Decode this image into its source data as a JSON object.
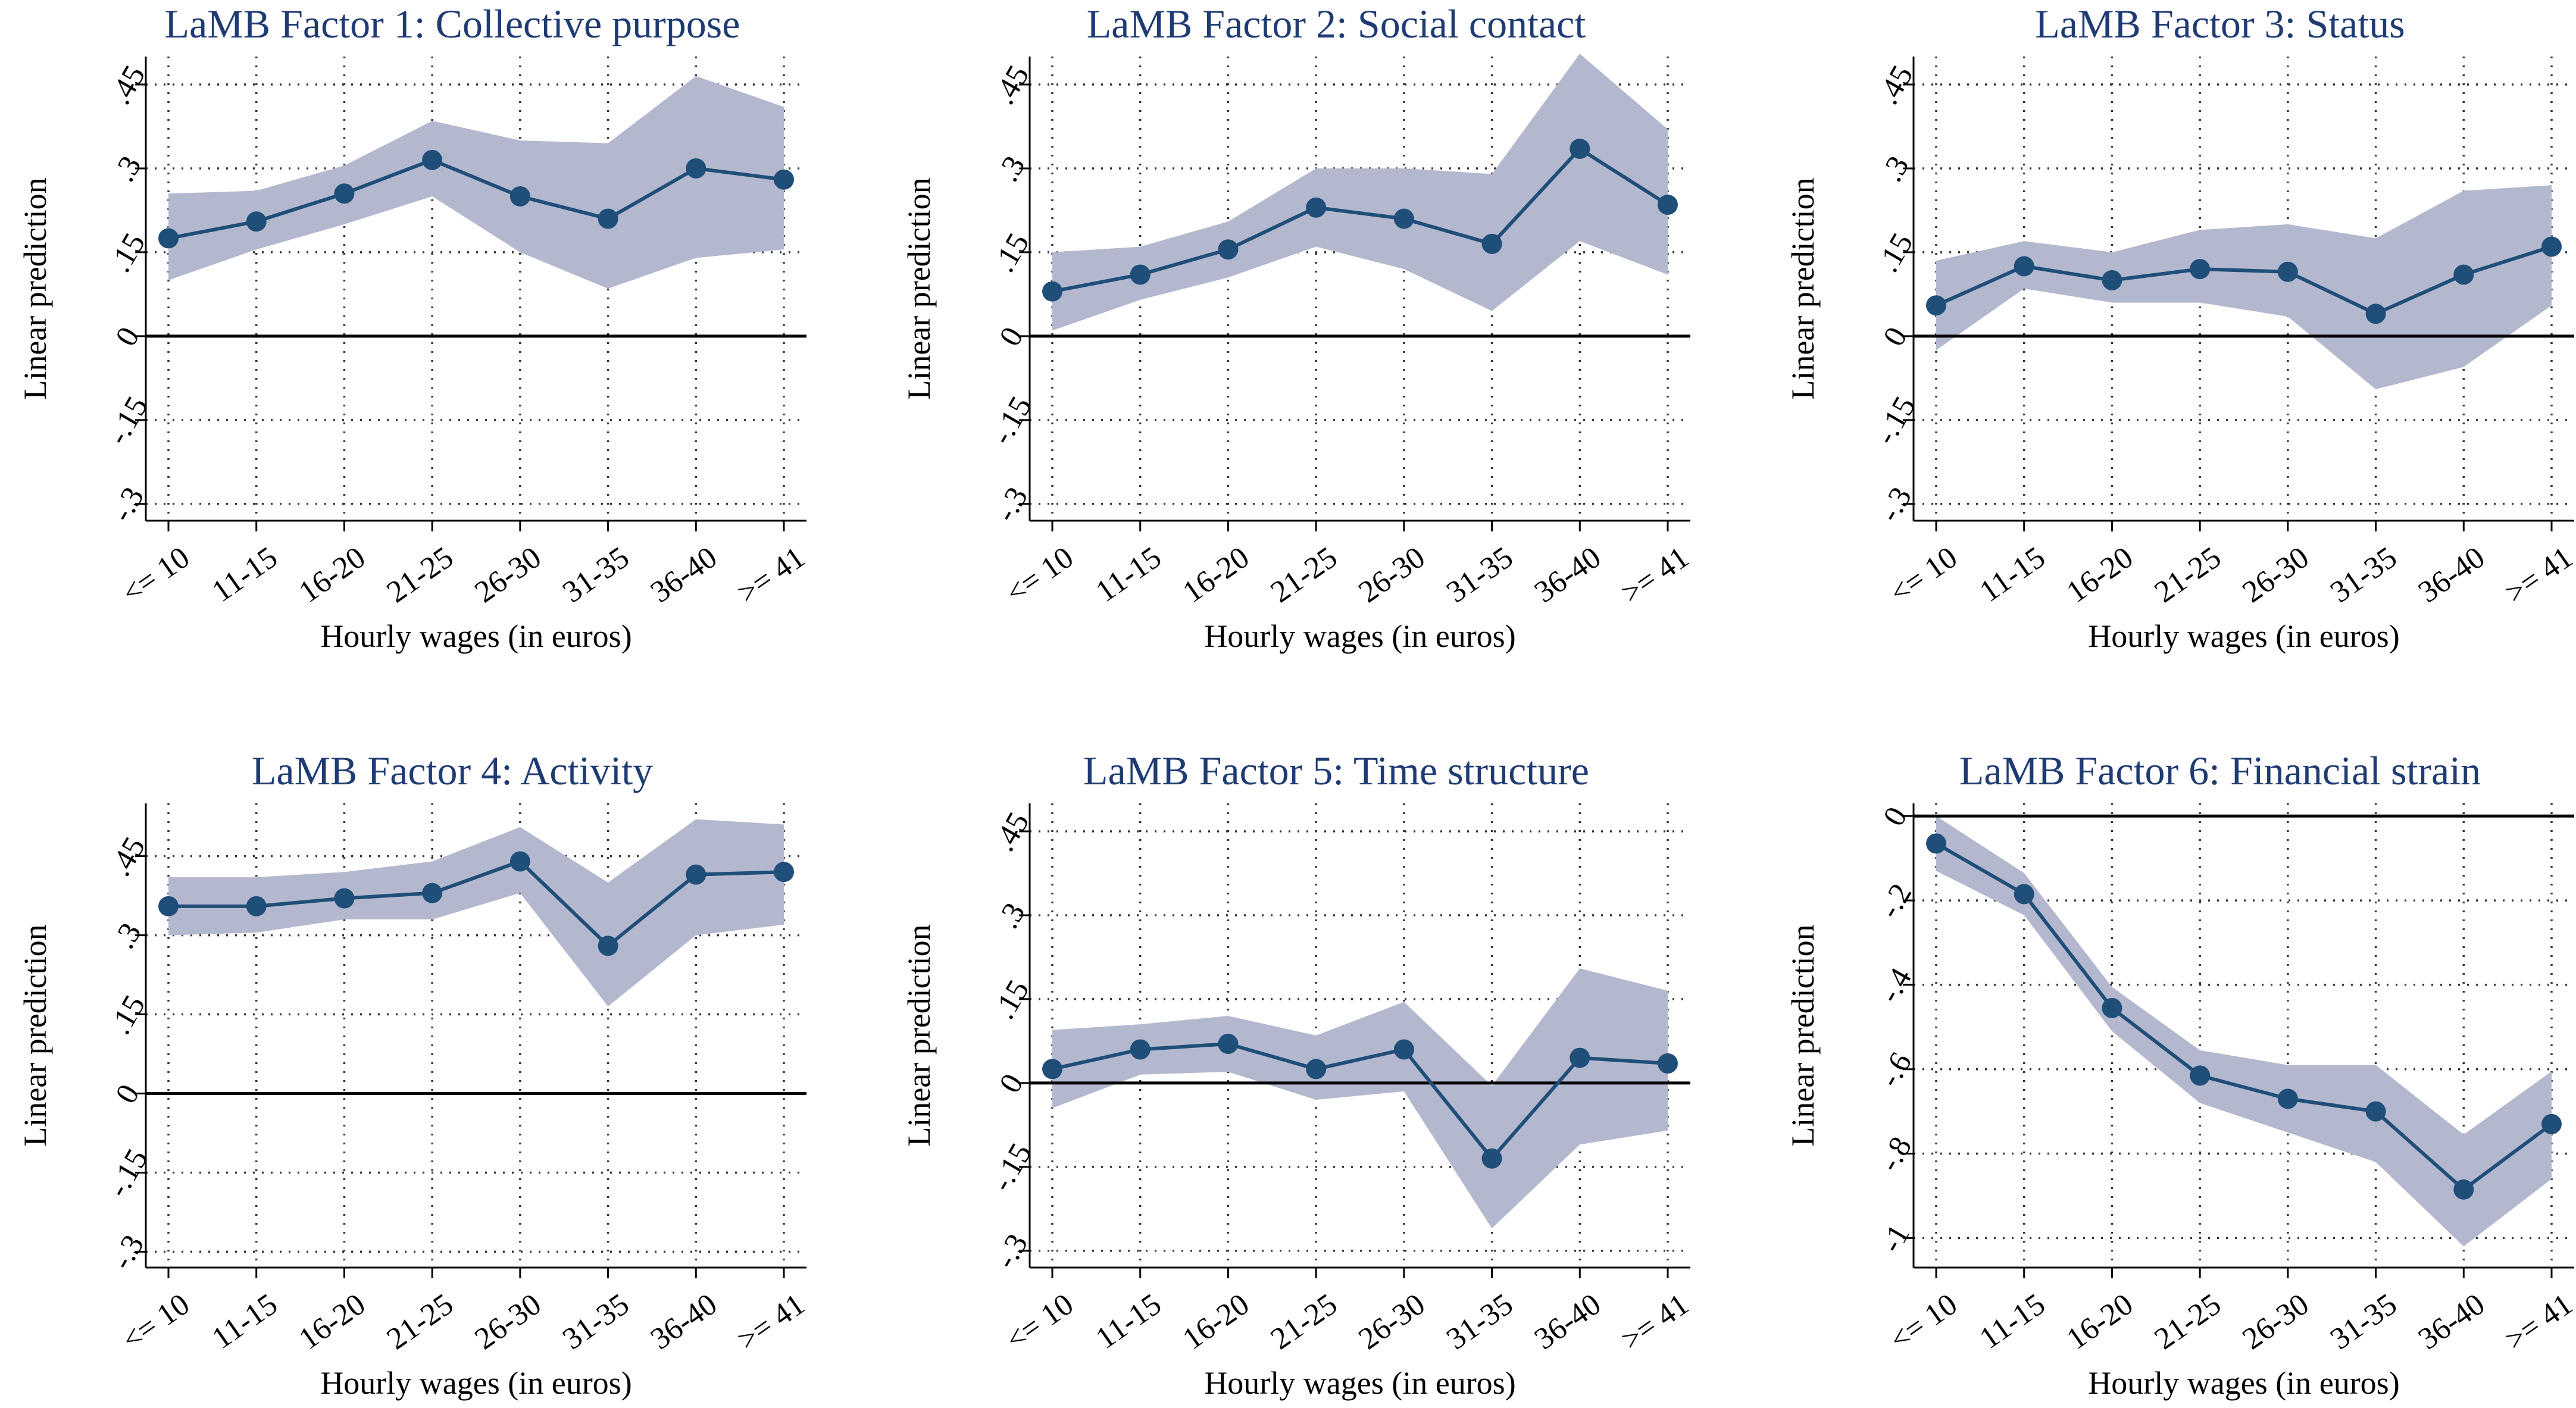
{
  "colors": {
    "line": "#1f4e79",
    "band": "#b4b8ce",
    "title": "#1f3b73"
  },
  "chart_data": [
    {
      "type": "line",
      "title": "LaMB Factor 1: Collective purpose",
      "xlabel": "Hourly wages (in euros)",
      "ylabel": "Linear prediction",
      "categories": [
        "<= 10",
        "11-15",
        "16-20",
        "21-25",
        "26-30",
        "31-35",
        "36-40",
        ">= 41"
      ],
      "values": [
        0.175,
        0.205,
        0.255,
        0.315,
        0.25,
        0.21,
        0.3,
        0.28
      ],
      "ci_lower": [
        0.1,
        0.155,
        0.2,
        0.25,
        0.15,
        0.085,
        0.14,
        0.155
      ],
      "ci_upper": [
        0.255,
        0.26,
        0.305,
        0.385,
        0.35,
        0.345,
        0.465,
        0.41
      ],
      "ylim": [
        -0.33,
        0.5
      ],
      "yticks": [
        -0.3,
        -0.15,
        0,
        0.15,
        0.3,
        0.45
      ],
      "ytick_labels": [
        "-.3",
        "-.15",
        "0",
        ".15",
        ".3",
        ".45"
      ]
    },
    {
      "type": "line",
      "title": "LaMB Factor 2: Social contact",
      "xlabel": "Hourly wages (in euros)",
      "ylabel": "Linear prediction",
      "categories": [
        "<= 10",
        "11-15",
        "16-20",
        "21-25",
        "26-30",
        "31-35",
        "36-40",
        ">= 41"
      ],
      "values": [
        0.08,
        0.11,
        0.155,
        0.23,
        0.21,
        0.165,
        0.335,
        0.235
      ],
      "ci_lower": [
        0.01,
        0.065,
        0.105,
        0.16,
        0.12,
        0.045,
        0.17,
        0.11
      ],
      "ci_upper": [
        0.15,
        0.16,
        0.205,
        0.3,
        0.3,
        0.29,
        0.505,
        0.37
      ],
      "ylim": [
        -0.33,
        0.5
      ],
      "yticks": [
        -0.3,
        -0.15,
        0,
        0.15,
        0.3,
        0.45
      ],
      "ytick_labels": [
        "-.3",
        "-.15",
        "0",
        ".15",
        ".3",
        ".45"
      ]
    },
    {
      "type": "line",
      "title": "LaMB Factor 3: Status",
      "xlabel": "Hourly wages (in euros)",
      "ylabel": "Linear prediction",
      "categories": [
        "<= 10",
        "11-15",
        "16-20",
        "21-25",
        "26-30",
        "31-35",
        "36-40",
        ">= 41"
      ],
      "values": [
        0.055,
        0.125,
        0.1,
        0.12,
        0.115,
        0.04,
        0.11,
        0.16
      ],
      "ci_lower": [
        -0.025,
        0.085,
        0.06,
        0.06,
        0.035,
        -0.095,
        -0.055,
        0.055
      ],
      "ci_upper": [
        0.135,
        0.17,
        0.15,
        0.19,
        0.2,
        0.175,
        0.26,
        0.27
      ],
      "ylim": [
        -0.33,
        0.5
      ],
      "yticks": [
        -0.3,
        -0.15,
        0,
        0.15,
        0.3,
        0.45
      ],
      "ytick_labels": [
        "-.3",
        "-.15",
        "0",
        ".15",
        ".3",
        ".45"
      ]
    },
    {
      "type": "line",
      "title": "LaMB Factor 4: Activity",
      "xlabel": "Hourly wages (in euros)",
      "ylabel": "Linear prediction",
      "categories": [
        "<= 10",
        "11-15",
        "16-20",
        "21-25",
        "26-30",
        "31-35",
        "36-40",
        ">= 41"
      ],
      "values": [
        0.355,
        0.355,
        0.37,
        0.38,
        0.44,
        0.28,
        0.415,
        0.42
      ],
      "ci_lower": [
        0.3,
        0.305,
        0.33,
        0.33,
        0.38,
        0.165,
        0.3,
        0.32
      ],
      "ci_upper": [
        0.41,
        0.41,
        0.42,
        0.44,
        0.505,
        0.4,
        0.52,
        0.51
      ],
      "ylim": [
        -0.33,
        0.55
      ],
      "yticks": [
        -0.3,
        -0.15,
        0,
        0.15,
        0.3,
        0.45
      ],
      "ytick_labels": [
        "-.3",
        "-.15",
        "0",
        ".15",
        ".3",
        ".45"
      ]
    },
    {
      "type": "line",
      "title": "LaMB Factor 5: Time structure",
      "xlabel": "Hourly wages (in euros)",
      "ylabel": "Linear prediction",
      "categories": [
        "<= 10",
        "11-15",
        "16-20",
        "21-25",
        "26-30",
        "31-35",
        "36-40",
        ">= 41"
      ],
      "values": [
        0.025,
        0.06,
        0.07,
        0.025,
        0.06,
        -0.135,
        0.045,
        0.035
      ],
      "ci_lower": [
        -0.045,
        0.015,
        0.02,
        -0.03,
        -0.015,
        -0.26,
        -0.11,
        -0.085
      ],
      "ci_upper": [
        0.095,
        0.105,
        0.12,
        0.085,
        0.145,
        -0.005,
        0.205,
        0.165
      ],
      "ylim": [
        -0.33,
        0.5
      ],
      "yticks": [
        -0.3,
        -0.15,
        0,
        0.15,
        0.3,
        0.45
      ],
      "ytick_labels": [
        "-.3",
        "-.15",
        "0",
        ".15",
        ".3",
        ".45"
      ]
    },
    {
      "type": "line",
      "title": "LaMB Factor 6: Financial strain",
      "xlabel": "Hourly wages (in euros)",
      "ylabel": "Linear prediction",
      "categories": [
        "<= 10",
        "11-15",
        "16-20",
        "21-25",
        "26-30",
        "31-35",
        "36-40",
        ">= 41"
      ],
      "values": [
        -0.065,
        -0.185,
        -0.455,
        -0.615,
        -0.67,
        -0.7,
        -0.885,
        -0.73
      ],
      "ci_lower": [
        -0.13,
        -0.235,
        -0.51,
        -0.68,
        -0.75,
        -0.82,
        -1.02,
        -0.86
      ],
      "ci_upper": [
        0.0,
        -0.135,
        -0.405,
        -0.555,
        -0.59,
        -0.59,
        -0.755,
        -0.605
      ],
      "ylim": [
        -1.07,
        0.03
      ],
      "yticks": [
        -1,
        -0.8,
        -0.6,
        -0.4,
        -0.2,
        0
      ],
      "ytick_labels": [
        "-1",
        "-.8",
        "-.6",
        "-.4",
        "-.2",
        "0"
      ]
    }
  ]
}
